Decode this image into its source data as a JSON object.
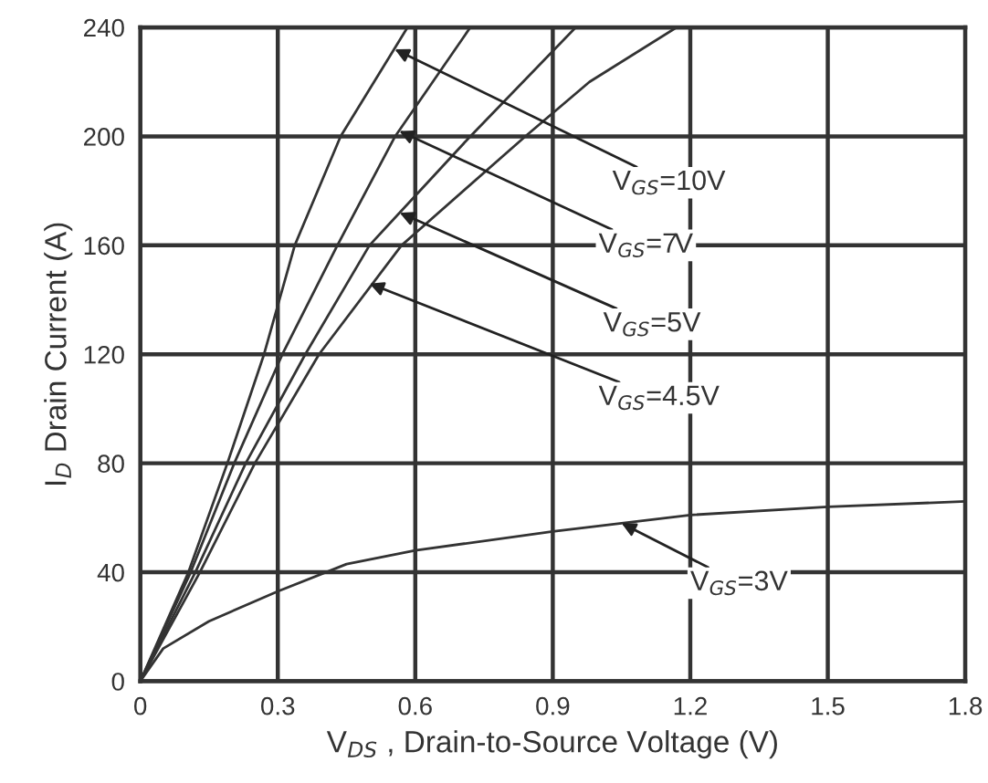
{
  "chart_data": {
    "type": "line",
    "xlabel": "V$_{DS}$ , Drain-to-Source Voltage (V)",
    "ylabel": "I$_{D}$ Drain Current (A)",
    "xlim": [
      0,
      1.8
    ],
    "xticks": [
      0,
      0.3,
      0.6,
      0.9,
      1.2,
      1.5,
      1.8
    ],
    "ylim": [
      0,
      240
    ],
    "yticks": [
      0,
      40,
      80,
      120,
      160,
      200,
      240
    ],
    "grid": true,
    "legend": false,
    "marker": "none",
    "line_style": "solid",
    "series": [
      {
        "color": "#333333",
        "x": [
          0,
          0.105,
          0.19,
          0.27,
          0.337,
          0.437,
          0.583
        ],
        "values": [
          0,
          40,
          80,
          120,
          160,
          200,
          240
        ]
      },
      {
        "color": "#333333",
        "x": [
          0,
          0.11,
          0.205,
          0.31,
          0.43,
          0.556,
          0.72
        ],
        "values": [
          0,
          40,
          80,
          120,
          160,
          200,
          240
        ]
      },
      {
        "color": "#333333",
        "x": [
          0,
          0.12,
          0.23,
          0.36,
          0.5,
          0.72,
          0.95
        ],
        "values": [
          0,
          40,
          80,
          120,
          160,
          200,
          240
        ]
      },
      {
        "color": "#333333",
        "x": [
          0,
          0.13,
          0.25,
          0.39,
          0.57,
          0.84,
          0.98,
          1.17
        ],
        "values": [
          0,
          40,
          80,
          120,
          160,
          200,
          220,
          240
        ]
      },
      {
        "color": "#333333",
        "x": [
          0,
          0.05,
          0.15,
          0.3,
          0.45,
          0.6,
          0.9,
          1.2,
          1.5,
          1.8
        ],
        "values": [
          0,
          12,
          22,
          33,
          43,
          48,
          55,
          61,
          64,
          66
        ]
      }
    ],
    "annotations": [
      {
        "text": "V$_{GS}$=10V",
        "x": 0.555,
        "y": 232
      },
      {
        "text": "V$_{GS}$=7V",
        "x": 0.565,
        "y": 202
      },
      {
        "text": "V$_{GS}$=5V",
        "x": 0.566,
        "y": 172
      },
      {
        "text": "V$_{GS}$=4.5V",
        "x": 0.5,
        "y": 146
      },
      {
        "text": "V$_{GS}$=3V",
        "x": 1.05,
        "y": 58
      }
    ]
  }
}
